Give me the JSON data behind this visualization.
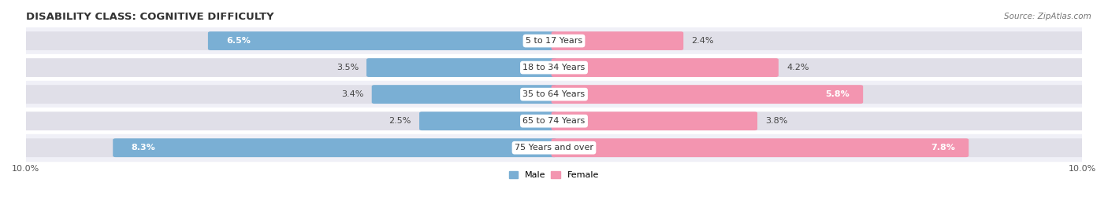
{
  "title": "DISABILITY CLASS: COGNITIVE DIFFICULTY",
  "source": "Source: ZipAtlas.com",
  "categories": [
    "5 to 17 Years",
    "18 to 34 Years",
    "35 to 64 Years",
    "65 to 74 Years",
    "75 Years and over"
  ],
  "male_values": [
    6.5,
    3.5,
    3.4,
    2.5,
    8.3
  ],
  "female_values": [
    2.4,
    4.2,
    5.8,
    3.8,
    7.8
  ],
  "male_color": "#7aafd4",
  "female_color": "#f395b0",
  "row_bg_colors": [
    "#f0f0f7",
    "#ffffff",
    "#f0f0f7",
    "#ffffff",
    "#f0f0f7"
  ],
  "bar_track_color": "#e0dfe8",
  "x_max": 10.0,
  "legend_male": "Male",
  "legend_female": "Female",
  "title_fontsize": 9.5,
  "label_fontsize": 8,
  "tick_fontsize": 8,
  "source_fontsize": 7.5
}
